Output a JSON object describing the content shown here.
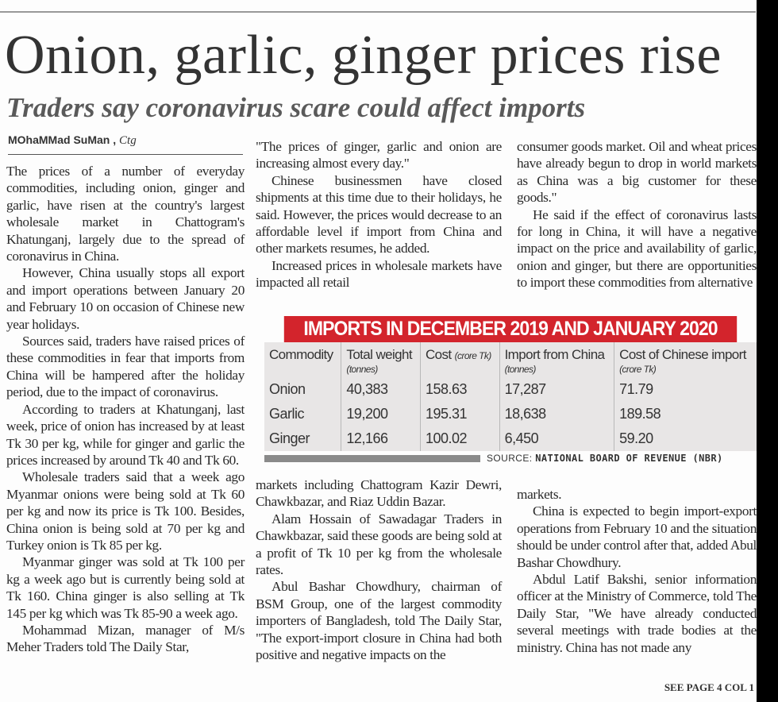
{
  "headline": "Onion, garlic, ginger prices rise",
  "subheadline": "Traders say coronavirus scare could affect imports",
  "byline": {
    "name": "MOhaMMad SuMan",
    "separator": ",",
    "location": "Ctg"
  },
  "column1": [
    "The prices of a number of everyday commodities, including onion, ginger and garlic, have risen at the country's largest wholesale market in Chattogram's Khatunganj, largely due to the spread of coronavirus in China.",
    "However, China usually stops all export and import operations between January 20 and February 10 on occasion of Chinese new year holidays.",
    "Sources said, traders have raised prices of these commodities in fear that imports from China will be hampered after the holiday period, due to the impact of coronavirus.",
    "According to traders at Khatunganj, last week, price of onion has increased by at least Tk 30 per kg, while for ginger and garlic the prices increased by around Tk 40 and Tk 60.",
    "Wholesale traders said that a week ago Myanmar onions were being sold at Tk 60 per kg and now its price is Tk 100. Besides, China onion is being sold at 70 per kg and Turkey onion is Tk 85 per kg.",
    "Myanmar ginger was sold at Tk 100 per kg a week ago but is currently being sold at Tk 160. China ginger is also selling at Tk 145 per kg which was Tk 85-90 a week ago.",
    "Mohammad Mizan, manager of M/s Meher Traders told The Daily Star,"
  ],
  "column2_top": [
    "\"The prices of ginger, garlic and onion are increasing almost every day.\"",
    "Chinese businessmen have closed shipments at this time due to their holidays, he said. However, the prices would decrease to an affordable level if import from China and other markets resumes, he added.",
    "Increased prices in wholesale markets have impacted all retail"
  ],
  "column3_top": [
    "consumer goods market. Oil and wheat prices have already begun to drop in world markets as China was a big customer for these goods.\"",
    "He said if the effect of coronavirus lasts for long in China, it will have a negative impact on the price and availability of garlic, onion and ginger, but there are opportunities to import these commodities from alternative"
  ],
  "column2_bottom": [
    "markets including Chattogram Kazir Dewri, Chawkbazar, and Riaz Uddin Bazar.",
    "Alam Hossain of Sawadagar Traders in Chawkbazar, said these goods are being sold at a profit of Tk 10 per kg from the wholesale rates.",
    "Abul Bashar Chowdhury, chairman of BSM Group, one of the largest commodity importers of Bangladesh, told The Daily Star, \"The export-import closure in China had both positive and negative impacts on the"
  ],
  "column3_bottom": [
    "markets.",
    "China is expected to begin import-export operations from February 10 and the situation should be under control after that, added Abul Bashar Chowdhury.",
    "Abdul Latif Bakshi, senior information officer at the Ministry of Commerce, told The Daily Star, \"We have already conducted several meetings with trade bodies at the ministry. China has not made any"
  ],
  "continuation": "SEE PAGE 4 COL 1",
  "table": {
    "title": "IMPORTS IN DECEMBER 2019 AND JANUARY 2020",
    "title_color": "#d3242c",
    "headers": [
      {
        "label": "Commodity",
        "unit": ""
      },
      {
        "label": "Total weight",
        "unit": "(tonnes)"
      },
      {
        "label": "Cost",
        "unit": "(crore Tk)"
      },
      {
        "label": "Import from China",
        "unit": "(tonnes)"
      },
      {
        "label": "Cost of Chinese import",
        "unit": "(crore Tk)"
      }
    ],
    "rows": [
      [
        "Onion",
        "40,383",
        "158.63",
        "17,287",
        "71.79"
      ],
      [
        "Garlic",
        "19,200",
        "195.31",
        "18,638",
        "189.58"
      ],
      [
        "Ginger",
        "12,166",
        "100.02",
        "6,450",
        "59.20"
      ]
    ],
    "source_label": "SOURCE:",
    "source": "NATIONAL BOARD OF REVENUE (NBR)"
  }
}
